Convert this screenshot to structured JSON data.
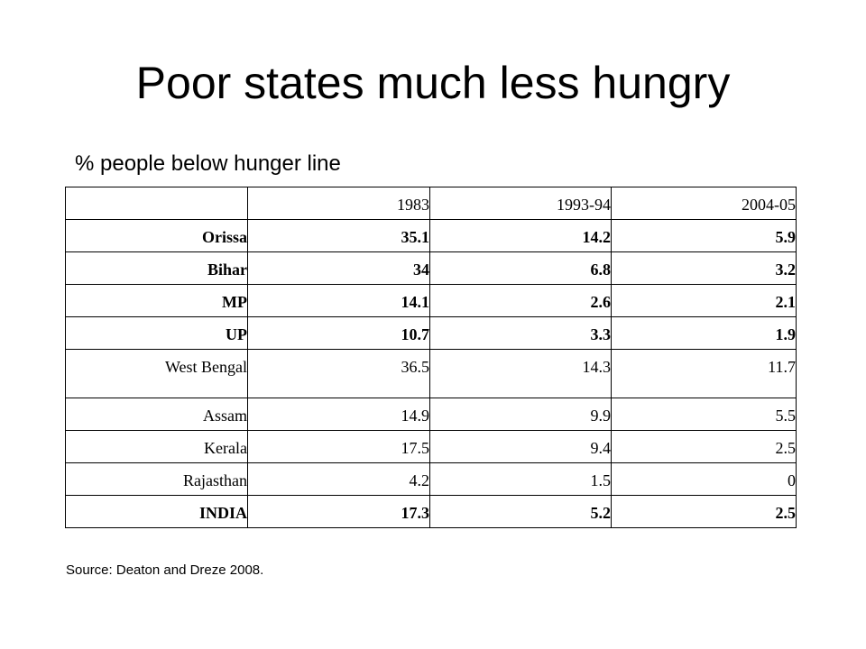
{
  "title": "Poor states much less hungry",
  "subtitle": "% people below hunger line",
  "table": {
    "headers": [
      "",
      "1983",
      "1993-94",
      "2004-05"
    ],
    "rows": [
      {
        "state": "Orissa",
        "values": [
          "35.1",
          "14.2",
          "5.9"
        ],
        "bold": true
      },
      {
        "state": "Bihar",
        "values": [
          "34",
          "6.8",
          "3.2"
        ],
        "bold": true
      },
      {
        "state": "MP",
        "values": [
          "14.1",
          "2.6",
          "2.1"
        ],
        "bold": true
      },
      {
        "state": "UP",
        "values": [
          "10.7",
          "3.3",
          "1.9"
        ],
        "bold": true
      },
      {
        "state": "West Bengal",
        "values": [
          "36.5",
          "14.3",
          "11.7"
        ],
        "bold": false
      },
      {
        "state": "Assam",
        "values": [
          "14.9",
          "9.9",
          "5.5"
        ],
        "bold": false
      },
      {
        "state": "Kerala",
        "values": [
          "17.5",
          "9.4",
          "2.5"
        ],
        "bold": false
      },
      {
        "state": "Rajasthan",
        "values": [
          "4.2",
          "1.5",
          "0"
        ],
        "bold": false
      },
      {
        "state": "INDIA",
        "values": [
          "17.3",
          "5.2",
          "2.5"
        ],
        "bold": true
      }
    ]
  },
  "source": "Source: Deaton and Dreze 2008."
}
